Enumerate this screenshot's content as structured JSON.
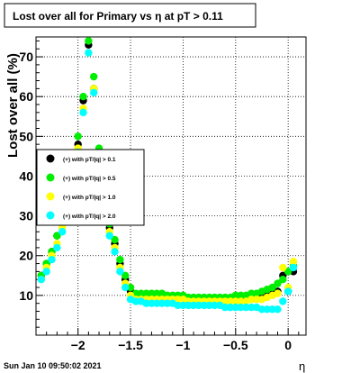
{
  "title": "Lost over all for Primary vs  η at pT > 0.11",
  "footer_timestamp": "Sun Jan 10 09:50:02 2021",
  "chart_data": {
    "type": "scatter",
    "title": "Lost over all for Primary vs  η at pT > 0.11",
    "xlabel": "η",
    "ylabel": "Lost over all (%)",
    "xlim": [
      -2.4,
      0.17
    ],
    "ylim": [
      0,
      75
    ],
    "x_ticks": [
      -2,
      -1.5,
      -1,
      -0.5,
      0
    ],
    "x_tick_labels": [
      "−2",
      "−1.5",
      "−1",
      "−0.5",
      "0"
    ],
    "y_ticks": [
      10,
      20,
      30,
      40,
      50,
      60,
      70
    ],
    "y_tick_labels": [
      "10",
      "20",
      "30",
      "40",
      "50",
      "60",
      "70"
    ],
    "grid": true,
    "legend_position": "left-middle",
    "series": [
      {
        "name": "(+) with pT/|q| > 0.1",
        "color": "#000000",
        "x": [
          -2.35,
          -2.3,
          -2.25,
          -2.2,
          -2.15,
          -2.1,
          -2.05,
          -2.0,
          -1.95,
          -1.9,
          -1.85,
          -1.8,
          -1.75,
          -1.7,
          -1.65,
          -1.6,
          -1.55,
          -1.5,
          -1.45,
          -1.4,
          -1.35,
          -1.3,
          -1.25,
          -1.2,
          -1.15,
          -1.1,
          -1.05,
          -1.0,
          -0.95,
          -0.9,
          -0.85,
          -0.8,
          -0.75,
          -0.7,
          -0.65,
          -0.6,
          -0.55,
          -0.5,
          -0.45,
          -0.4,
          -0.35,
          -0.3,
          -0.25,
          -0.2,
          -0.15,
          -0.1,
          -0.05,
          0.0,
          0.05
        ],
        "y": [
          15,
          18,
          21,
          25,
          28,
          33,
          39,
          48,
          59,
          73,
          62,
          45,
          35,
          27,
          23,
          18,
          14,
          11,
          10,
          10,
          10,
          10,
          10,
          10,
          9.5,
          9.5,
          9.5,
          9,
          9,
          9,
          9,
          9,
          9,
          9,
          9,
          9,
          9,
          9,
          9,
          9.5,
          9.5,
          10,
          10,
          10.5,
          11,
          11,
          15,
          11,
          16
        ]
      },
      {
        "name": "(+) with pT/|q| > 0.5",
        "color": "#00ee00",
        "x": [
          -2.35,
          -2.3,
          -2.25,
          -2.2,
          -2.15,
          -2.1,
          -2.05,
          -2.0,
          -1.95,
          -1.9,
          -1.85,
          -1.8,
          -1.75,
          -1.7,
          -1.65,
          -1.6,
          -1.55,
          -1.5,
          -1.45,
          -1.4,
          -1.35,
          -1.3,
          -1.25,
          -1.2,
          -1.15,
          -1.1,
          -1.05,
          -1.0,
          -0.95,
          -0.9,
          -0.85,
          -0.8,
          -0.75,
          -0.7,
          -0.65,
          -0.6,
          -0.55,
          -0.5,
          -0.45,
          -0.4,
          -0.35,
          -0.3,
          -0.25,
          -0.2,
          -0.15,
          -0.1,
          -0.05,
          0.0,
          0.05
        ],
        "y": [
          15,
          18,
          21,
          25,
          29,
          34,
          40,
          50,
          60,
          74,
          65,
          47,
          36,
          28,
          24,
          19,
          15,
          12,
          10.5,
          10.5,
          10.5,
          10.5,
          10.5,
          10.5,
          10,
          10,
          10,
          10,
          9.5,
          9.5,
          9.5,
          9.5,
          9.5,
          9.5,
          9.5,
          9.5,
          9.5,
          10,
          10,
          10,
          10.5,
          10.5,
          11,
          11.5,
          12,
          13,
          14,
          16,
          17.5
        ]
      },
      {
        "name": "(+) with pT/|q| > 1.0",
        "color": "#ffff00",
        "x": [
          -2.35,
          -2.3,
          -2.25,
          -2.2,
          -2.15,
          -2.1,
          -2.05,
          -2.0,
          -1.95,
          -1.9,
          -1.85,
          -1.8,
          -1.75,
          -1.7,
          -1.65,
          -1.6,
          -1.55,
          -1.5,
          -1.45,
          -1.4,
          -1.35,
          -1.3,
          -1.25,
          -1.2,
          -1.15,
          -1.1,
          -1.05,
          -1.0,
          -0.95,
          -0.9,
          -0.85,
          -0.8,
          -0.75,
          -0.7,
          -0.65,
          -0.6,
          -0.55,
          -0.5,
          -0.45,
          -0.4,
          -0.35,
          -0.3,
          -0.25,
          -0.2,
          -0.15,
          -0.1,
          -0.05,
          0.0,
          0.05
        ],
        "y": [
          14,
          17,
          20,
          23,
          27,
          32,
          38,
          47,
          57,
          71,
          62,
          44,
          34,
          26,
          22,
          17,
          13,
          10,
          9,
          9,
          9,
          9,
          9,
          9,
          9,
          9,
          9,
          9,
          8.5,
          8.5,
          8.5,
          8.5,
          8.5,
          8.5,
          8.5,
          8.5,
          8.5,
          8.5,
          8.5,
          8.5,
          9,
          9,
          9,
          9.5,
          10,
          10.5,
          17,
          12,
          18.5
        ]
      },
      {
        "name": "(+) with pT/|q| > 2.0",
        "color": "#00ffff",
        "x": [
          -2.35,
          -2.3,
          -2.25,
          -2.2,
          -2.15,
          -2.1,
          -2.05,
          -2.0,
          -1.95,
          -1.9,
          -1.85,
          -1.8,
          -1.75,
          -1.7,
          -1.65,
          -1.6,
          -1.55,
          -1.5,
          -1.45,
          -1.4,
          -1.35,
          -1.3,
          -1.25,
          -1.2,
          -1.15,
          -1.1,
          -1.05,
          -1.0,
          -0.95,
          -0.9,
          -0.85,
          -0.8,
          -0.75,
          -0.7,
          -0.65,
          -0.6,
          -0.55,
          -0.5,
          -0.45,
          -0.4,
          -0.35,
          -0.3,
          -0.25,
          -0.2,
          -0.15,
          -0.1,
          -0.05,
          0.0,
          0.05
        ],
        "y": [
          14,
          16,
          19,
          22,
          26,
          31,
          37,
          46,
          56,
          71,
          61,
          43,
          33,
          25,
          21,
          16,
          12,
          9,
          8.5,
          8.5,
          8,
          8,
          8,
          8,
          8,
          8,
          7.5,
          7.5,
          7.5,
          7.5,
          7.5,
          7.5,
          7.5,
          7.5,
          7.5,
          7,
          7,
          7,
          7,
          7,
          7,
          7,
          6.5,
          6.5,
          6.5,
          6.5,
          8.5,
          11,
          17
        ]
      }
    ]
  }
}
